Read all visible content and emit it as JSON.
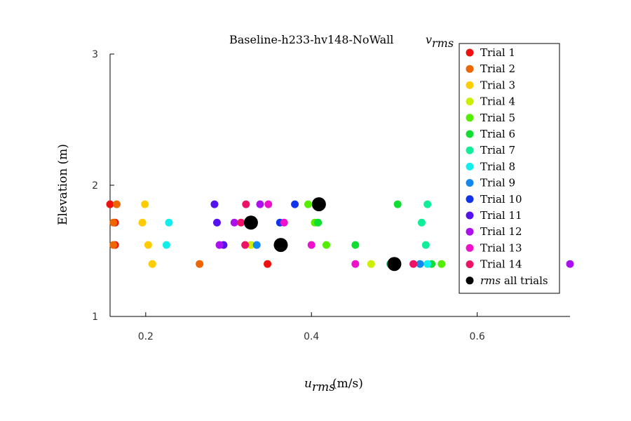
{
  "chart_data": {
    "type": "scatter",
    "title": "Baseline-h233-hv148-NoWall",
    "title_math": "v",
    "title_sub": "rms",
    "xlabel_math": "u",
    "xlabel_sub": "rms",
    "xlabel_unit": " (m/s)",
    "ylabel": "Elevation (m)",
    "xlim": [
      0.157,
      0.712
    ],
    "ylim": [
      1,
      3
    ],
    "xticks": [
      0.2,
      0.4,
      0.6
    ],
    "xtick_labels": [
      "0.2",
      "0.4",
      "0.6"
    ],
    "yticks": [
      1,
      2,
      3
    ],
    "ytick_labels": [
      "1",
      "2",
      "3"
    ],
    "grid": false,
    "legend_position": "top-right",
    "series": [
      {
        "name": "Trial 1",
        "color": "#ee1111",
        "points": [
          [
            0.157,
            1.855
          ],
          [
            0.163,
            1.715
          ],
          [
            0.163,
            1.545
          ],
          [
            0.347,
            1.4
          ]
        ]
      },
      {
        "name": "Trial 2",
        "color": "#ee6600",
        "points": [
          [
            0.165,
            1.855
          ],
          [
            0.161,
            1.715
          ],
          [
            0.161,
            1.545
          ],
          [
            0.265,
            1.4
          ]
        ]
      },
      {
        "name": "Trial 3",
        "color": "#ffcc00",
        "points": [
          [
            0.199,
            1.855
          ],
          [
            0.196,
            1.715
          ],
          [
            0.203,
            1.545
          ],
          [
            0.208,
            1.4
          ]
        ]
      },
      {
        "name": "Trial 4",
        "color": "#ccee00",
        "points": [
          [
            0.472,
            1.4
          ],
          [
            0.327,
            1.545
          ]
        ]
      },
      {
        "name": "Trial 5",
        "color": "#55ee00",
        "points": [
          [
            0.396,
            1.855
          ],
          [
            0.404,
            1.715
          ],
          [
            0.418,
            1.545
          ],
          [
            0.557,
            1.4
          ]
        ]
      },
      {
        "name": "Trial 6",
        "color": "#11dd33",
        "points": [
          [
            0.504,
            1.855
          ],
          [
            0.408,
            1.715
          ],
          [
            0.453,
            1.545
          ],
          [
            0.545,
            1.4
          ]
        ]
      },
      {
        "name": "Trial 7",
        "color": "#11ee99",
        "points": [
          [
            0.54,
            1.855
          ],
          [
            0.533,
            1.715
          ],
          [
            0.538,
            1.545
          ],
          [
            0.495,
            1.4
          ]
        ]
      },
      {
        "name": "Trial 8",
        "color": "#11eeee",
        "points": [
          [
            0.228,
            1.715
          ],
          [
            0.225,
            1.545
          ],
          [
            0.54,
            1.4
          ]
        ]
      },
      {
        "name": "Trial 9",
        "color": "#1188ee",
        "points": [
          [
            0.334,
            1.545
          ],
          [
            0.531,
            1.4
          ]
        ]
      },
      {
        "name": "Trial 10",
        "color": "#1133ee",
        "points": [
          [
            0.38,
            1.855
          ],
          [
            0.362,
            1.715
          ]
        ]
      },
      {
        "name": "Trial 11",
        "color": "#5511ee",
        "points": [
          [
            0.283,
            1.855
          ],
          [
            0.286,
            1.715
          ],
          [
            0.294,
            1.545
          ]
        ]
      },
      {
        "name": "Trial 12",
        "color": "#aa11ee",
        "points": [
          [
            0.338,
            1.855
          ],
          [
            0.307,
            1.715
          ],
          [
            0.289,
            1.545
          ],
          [
            0.712,
            1.4
          ]
        ]
      },
      {
        "name": "Trial 13",
        "color": "#ee11cc",
        "points": [
          [
            0.348,
            1.855
          ],
          [
            0.367,
            1.715
          ],
          [
            0.4,
            1.545
          ],
          [
            0.453,
            1.4
          ]
        ]
      },
      {
        "name": "Trial 14",
        "color": "#ee1166",
        "points": [
          [
            0.321,
            1.855
          ],
          [
            0.315,
            1.715
          ],
          [
            0.32,
            1.545
          ],
          [
            0.523,
            1.4
          ]
        ]
      },
      {
        "name_math": "rms",
        "name_rest": " all trials",
        "color": "#000000",
        "big": true,
        "points": [
          [
            0.409,
            1.855
          ],
          [
            0.327,
            1.715
          ],
          [
            0.363,
            1.545
          ],
          [
            0.5,
            1.4
          ]
        ]
      }
    ]
  }
}
